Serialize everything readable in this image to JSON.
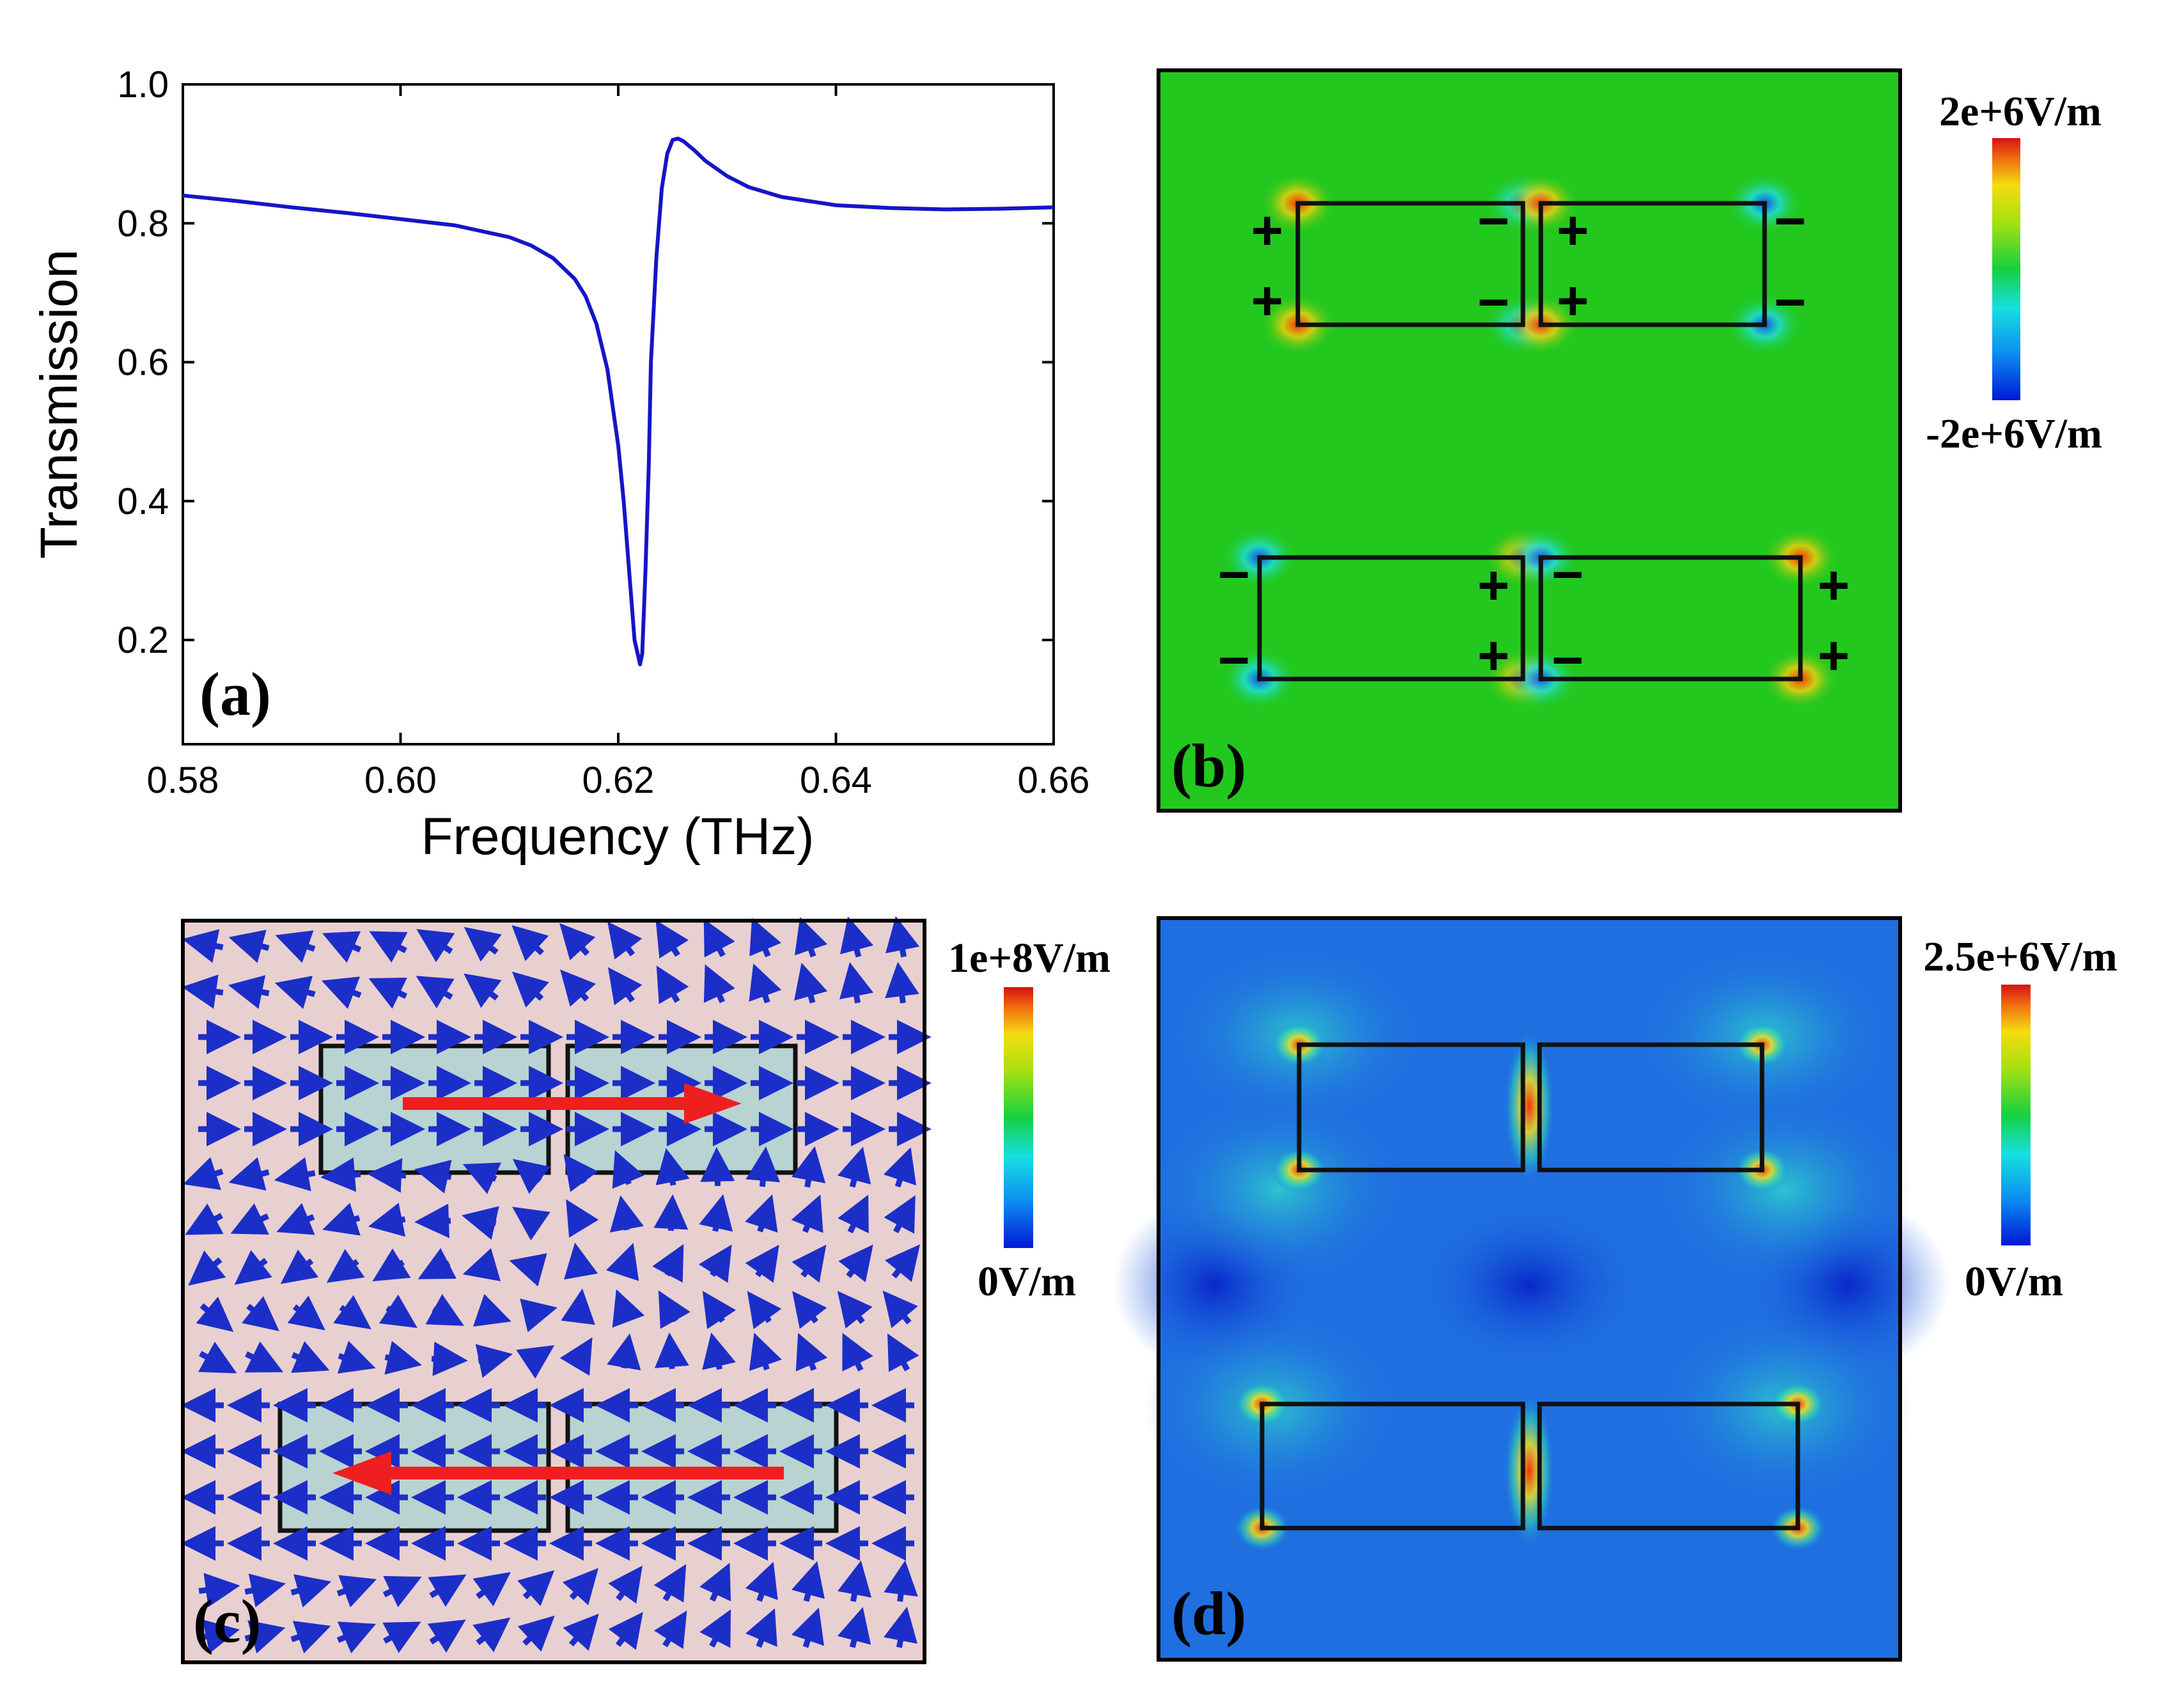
{
  "panels": {
    "a": {
      "label": "(a)"
    },
    "b": {
      "label": "(b)",
      "colorbar": {
        "max_label": "2e+6V/m",
        "min_label": "-2e+6V/m"
      },
      "charge_signs": {
        "plus": "+",
        "minus": "−"
      }
    },
    "c": {
      "label": "(c)",
      "colorbar": {
        "max_label": "1e+8V/m",
        "min_label": "0V/m"
      }
    },
    "d": {
      "label": "(d)",
      "colorbar": {
        "max_label": "2.5e+6V/m",
        "min_label": "0V/m"
      }
    }
  },
  "colors": {
    "curve": "#1515c8",
    "field_b_background": "#22c81e",
    "field_c_background": "#e8d0d0",
    "field_c_blocks": "#b9d3d2",
    "arrows_c": "#1c2ec8",
    "current_arrow": "#ee1f1f",
    "field_d_background": "#1f6fe0"
  },
  "chart_data": {
    "type": "line",
    "title": "",
    "xlabel": "Frequency (THz)",
    "ylabel": "Transmission",
    "xlim": [
      0.58,
      0.66
    ],
    "ylim": [
      0.05,
      1.0
    ],
    "xticks": [
      0.58,
      0.6,
      0.62,
      0.64,
      0.66
    ],
    "xtick_labels": [
      "0.58",
      "0.60",
      "0.62",
      "0.64",
      "0.66"
    ],
    "yticks": [
      0.2,
      0.4,
      0.6,
      0.8,
      1.0
    ],
    "ytick_labels": [
      "0.2",
      "0.4",
      "0.6",
      "0.8",
      "1.0"
    ],
    "series": [
      {
        "name": "Transmission",
        "x": [
          0.58,
          0.585,
          0.59,
          0.595,
          0.6,
          0.605,
          0.61,
          0.612,
          0.614,
          0.616,
          0.617,
          0.618,
          0.619,
          0.62,
          0.6205,
          0.621,
          0.6215,
          0.622,
          0.6222,
          0.6225,
          0.6228,
          0.623,
          0.6235,
          0.624,
          0.6245,
          0.625,
          0.6255,
          0.626,
          0.627,
          0.628,
          0.63,
          0.632,
          0.635,
          0.64,
          0.645,
          0.65,
          0.655,
          0.66
        ],
        "y": [
          0.84,
          0.832,
          0.823,
          0.815,
          0.806,
          0.797,
          0.78,
          0.768,
          0.75,
          0.72,
          0.695,
          0.655,
          0.59,
          0.48,
          0.4,
          0.3,
          0.2,
          0.165,
          0.18,
          0.3,
          0.45,
          0.6,
          0.75,
          0.85,
          0.9,
          0.92,
          0.922,
          0.918,
          0.905,
          0.89,
          0.868,
          0.852,
          0.838,
          0.826,
          0.822,
          0.82,
          0.821,
          0.823
        ]
      }
    ]
  }
}
